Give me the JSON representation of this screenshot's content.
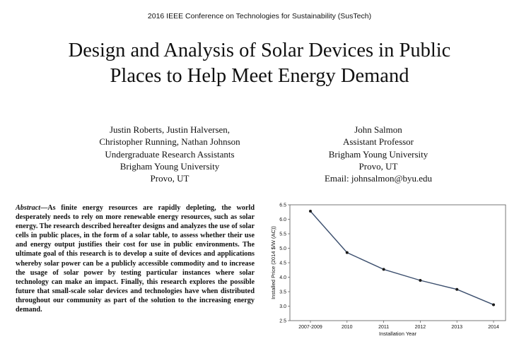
{
  "header": {
    "conference": "2016 IEEE Conference on Technologies for Sustainability (SusTech)"
  },
  "paper": {
    "title_line1": "Design and Analysis of Solar Devices in Public",
    "title_line2": "Places to Help Meet Energy Demand"
  },
  "authors": {
    "left": [
      "Justin Roberts, Justin Halversen,",
      "Christopher Running, Nathan Johnson",
      "Undergraduate Research Assistants",
      "Brigham Young University",
      "Provo, UT"
    ],
    "right": [
      "John Salmon",
      "Assistant Professor",
      "Brigham Young University",
      "Provo, UT",
      "Email: johnsalmon@byu.edu"
    ]
  },
  "abstract": {
    "lead": "Abstract",
    "dash": "—",
    "text": "As finite energy resources are rapidly depleting, the world desperately needs to rely on more renewable energy resources, such as solar energy. The research described hereafter designs and analyzes the use of solar cells in public places, in the form of a solar table, to assess whether their use and energy output justifies their cost for use in public environments. The ultimate goal of this research is to develop a suite of devices and applications whereby solar power can be a publicly accessible commodity and to increase the usage of solar power by testing particular instances where solar technology can make an impact. Finally, this research explores the possible future that small-scale solar devices and technologies have when distributed throughout our community as part of the solution to the increasing energy demand."
  },
  "chart_data": {
    "type": "line",
    "categories": [
      "2007-2009",
      "2010",
      "2011",
      "2012",
      "2013",
      "2014"
    ],
    "values": [
      6.28,
      4.85,
      4.27,
      3.89,
      3.58,
      3.05
    ],
    "xlabel": "Installation Year",
    "ylabel": "Installed Price (2014 $/W (AC))",
    "ylim": [
      2.5,
      6.5
    ],
    "yticks": [
      "2.5",
      "3.0",
      "3.5",
      "4.0",
      "4.5",
      "5.0",
      "5.5",
      "6.0",
      "6.5"
    ],
    "line_color": "#3c4f6e",
    "marker_color": "#1a1a1a",
    "grid": false
  }
}
